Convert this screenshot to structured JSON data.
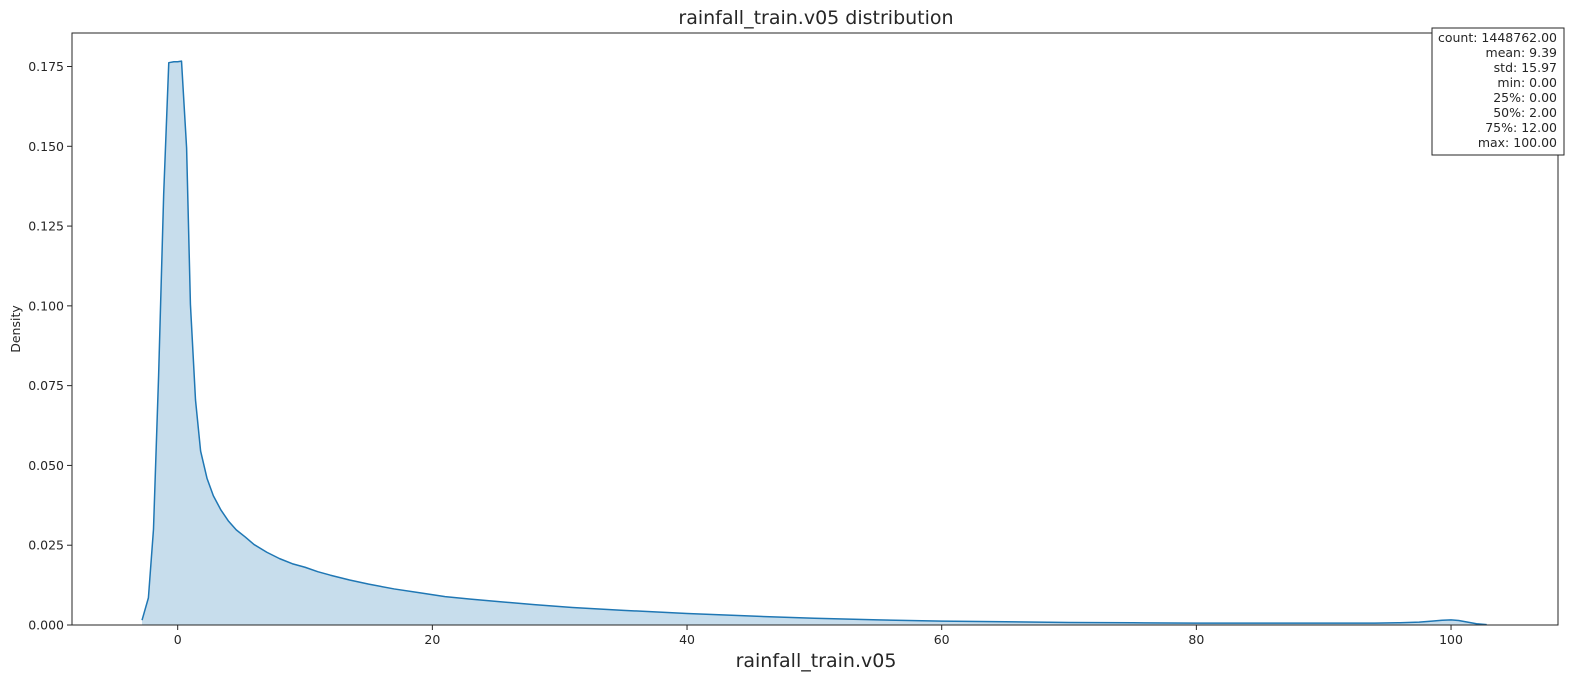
{
  "chart_data": {
    "type": "area",
    "title": "rainfall_train.v05 distribution",
    "xlabel": "rainfall_train.v05",
    "ylabel": "Density",
    "xlim": [
      -8.3,
      108.4
    ],
    "ylim": [
      0,
      0.1855
    ],
    "x_ticks": [
      0,
      20,
      40,
      60,
      80,
      100
    ],
    "x_tick_labels": [
      "0",
      "20",
      "40",
      "60",
      "80",
      "100"
    ],
    "y_ticks": [
      0,
      0.025,
      0.05,
      0.075,
      0.1,
      0.125,
      0.15,
      0.175
    ],
    "y_tick_labels": [
      "0.000",
      "0.025",
      "0.050",
      "0.075",
      "0.100",
      "0.125",
      "0.150",
      "0.175"
    ],
    "grid": false,
    "legend": "none",
    "stats_box": {
      "placement": "top-right",
      "lines": [
        "count: 1448762.00",
        "mean: 9.39",
        "std: 15.97",
        "min: 0.00",
        "25%: 0.00",
        "50%: 2.00",
        "75%: 12.00",
        "max: 100.00"
      ]
    },
    "series": [
      {
        "line_color": "#1f77b4",
        "fill_color": "#1f77b4",
        "fill_opacity": 0.25,
        "x": [
          -2.8,
          -2.3,
          -1.9,
          -1.5,
          -1.1,
          -0.7,
          -0.3,
          0.0,
          0.3,
          0.7,
          1.0,
          1.4,
          1.8,
          2.3,
          2.8,
          3.4,
          4.0,
          4.6,
          5.3,
          6.0,
          7.0,
          8.0,
          9.0,
          10.0,
          11.0,
          12.0,
          13.5,
          15.0,
          17.0,
          19.0,
          21.0,
          23.0,
          25.0,
          28.0,
          31.0,
          35.0,
          40.0,
          45.0,
          50.0,
          55.0,
          60.0,
          65.0,
          70.0,
          75.0,
          80.0,
          85.0,
          90.0,
          94.0,
          96.0,
          97.5,
          98.5,
          99.3,
          100.0,
          100.6,
          101.3,
          102.0,
          102.8
        ],
        "y": [
          0.0015,
          0.0085,
          0.03,
          0.078,
          0.135,
          0.1762,
          0.1765,
          0.1765,
          0.1767,
          0.1495,
          0.1005,
          0.0705,
          0.0545,
          0.046,
          0.0405,
          0.036,
          0.0325,
          0.0298,
          0.0276,
          0.0252,
          0.0228,
          0.0208,
          0.0192,
          0.0181,
          0.0167,
          0.0156,
          0.0141,
          0.0128,
          0.0113,
          0.0101,
          0.0089,
          0.0081,
          0.0074,
          0.0064,
          0.0055,
          0.0046,
          0.0036,
          0.0028,
          0.0021,
          0.0016,
          0.0012,
          0.001,
          0.0008,
          0.0007,
          0.0006,
          0.0006,
          0.0006,
          0.0006,
          0.0007,
          0.0009,
          0.0012,
          0.0015,
          0.0016,
          0.0014,
          0.0009,
          0.0004,
          0.0001
        ]
      }
    ]
  }
}
